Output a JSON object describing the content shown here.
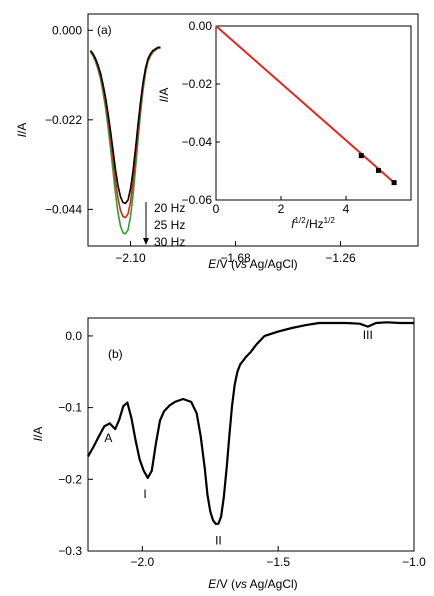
{
  "chart_data": [
    {
      "panel": "a",
      "type": "line",
      "panel_label": "(a)",
      "x_title": {
        "italic": "E",
        "rest": "/V (",
        "italic2": "vs",
        "rest2": " Ag/AgCl)"
      },
      "y_title": {
        "italic": "I",
        "rest": "/A"
      },
      "xlim": [
        -2.27,
        -0.95
      ],
      "ylim": [
        -0.053,
        0.004
      ],
      "xticks": [
        -2.1,
        -1.68,
        -1.26
      ],
      "xtick_labels": [
        "−2.10",
        "−1.68",
        "−1.26"
      ],
      "yticks": [
        0.0,
        -0.022,
        -0.044
      ],
      "ytick_labels": [
        "0.000",
        "−0.022",
        "−0.044"
      ],
      "series": [
        {
          "name": "20 Hz",
          "color": "#000000",
          "peak": -0.0425
        },
        {
          "name": "25 Hz",
          "color": "#d62718",
          "peak": -0.046
        },
        {
          "name": "30 Hz",
          "color": "#2ca02c",
          "peak": -0.05
        }
      ],
      "curve_x": [
        -2.26,
        -2.25,
        -2.24,
        -2.23,
        -2.22,
        -2.21,
        -2.2,
        -2.19,
        -2.18,
        -2.17,
        -2.16,
        -2.15,
        -2.14,
        -2.13,
        -2.12,
        -2.11,
        -2.1,
        -2.09,
        -2.08,
        -2.07,
        -2.06,
        -2.05,
        -2.04,
        -2.03,
        -2.02,
        -2.01,
        -2.0,
        -1.99,
        -1.98
      ],
      "curve_shape": [
        0.05,
        0.07,
        0.1,
        0.14,
        0.19,
        0.26,
        0.34,
        0.44,
        0.55,
        0.67,
        0.79,
        0.89,
        0.96,
        0.995,
        1.0,
        0.98,
        0.91,
        0.8,
        0.66,
        0.51,
        0.37,
        0.25,
        0.16,
        0.1,
        0.07,
        0.05,
        0.04,
        0.03,
        0.03
      ],
      "legend": [
        "20 Hz",
        "25 Hz",
        "30 Hz"
      ],
      "inset": {
        "type": "line",
        "x_title": {
          "italic": "f",
          "sup1": "1/2",
          "rest": "/Hz",
          "sup2": "1/2"
        },
        "y_title": {
          "italic": "I",
          "rest": "/A"
        },
        "xlim": [
          0,
          6
        ],
        "ylim": [
          -0.06,
          0.0
        ],
        "xticks": [
          0,
          2,
          4
        ],
        "xtick_labels": [
          "0",
          "2",
          "4"
        ],
        "yticks": [
          0.0,
          -0.02,
          -0.04,
          -0.06
        ],
        "ytick_labels": [
          "0.00",
          "−0.02",
          "−0.04",
          "−0.06"
        ],
        "points": [
          [
            4.47,
            -0.0447
          ],
          [
            5.0,
            -0.0498
          ],
          [
            5.48,
            -0.054
          ]
        ],
        "fit_line": [
          [
            0,
            0.0
          ],
          [
            5.48,
            -0.054
          ]
        ],
        "line_color": "#e8241a",
        "marker_color": "#000000"
      }
    },
    {
      "panel": "b",
      "type": "line",
      "panel_label": "(b)",
      "x_title": {
        "italic": "E",
        "rest": "/V (",
        "italic2": "vs",
        "rest2": " Ag/AgCl)"
      },
      "y_title": {
        "italic": "I",
        "rest": "/A"
      },
      "xlim": [
        -2.2,
        -1.0
      ],
      "ylim": [
        -0.3,
        0.025
      ],
      "xticks": [
        -2.0,
        -1.5,
        -1.0
      ],
      "xtick_labels": [
        "−2.0",
        "−1.5",
        "−1.0"
      ],
      "yticks": [
        0.0,
        -0.1,
        -0.2,
        -0.3
      ],
      "ytick_labels": [
        "0.0",
        "−0.1",
        "−0.2",
        "−0.3"
      ],
      "series": [
        {
          "name": "",
          "color": "#000000",
          "x": [
            -2.2,
            -2.18,
            -2.16,
            -2.14,
            -2.12,
            -2.1,
            -2.085,
            -2.07,
            -2.055,
            -2.04,
            -2.025,
            -2.01,
            -1.995,
            -1.98,
            -1.965,
            -1.95,
            -1.935,
            -1.92,
            -1.9,
            -1.88,
            -1.85,
            -1.82,
            -1.8,
            -1.785,
            -1.77,
            -1.76,
            -1.75,
            -1.74,
            -1.73,
            -1.72,
            -1.71,
            -1.7,
            -1.69,
            -1.68,
            -1.67,
            -1.66,
            -1.65,
            -1.64,
            -1.63,
            -1.62,
            -1.6,
            -1.58,
            -1.55,
            -1.5,
            -1.45,
            -1.4,
            -1.35,
            -1.3,
            -1.25,
            -1.2,
            -1.17,
            -1.14,
            -1.1,
            -1.05,
            -1.0
          ],
          "y": [
            -0.168,
            -0.155,
            -0.14,
            -0.126,
            -0.122,
            -0.13,
            -0.117,
            -0.098,
            -0.093,
            -0.115,
            -0.145,
            -0.172,
            -0.188,
            -0.198,
            -0.188,
            -0.15,
            -0.118,
            -0.105,
            -0.097,
            -0.092,
            -0.088,
            -0.092,
            -0.108,
            -0.14,
            -0.185,
            -0.222,
            -0.245,
            -0.257,
            -0.262,
            -0.262,
            -0.252,
            -0.225,
            -0.185,
            -0.14,
            -0.098,
            -0.068,
            -0.05,
            -0.04,
            -0.035,
            -0.03,
            -0.022,
            -0.012,
            0.0,
            0.006,
            0.011,
            0.015,
            0.018,
            0.018,
            0.018,
            0.017,
            0.013,
            0.018,
            0.019,
            0.018,
            0.018
          ]
        }
      ],
      "annotations": [
        {
          "text": "A",
          "x": -2.125,
          "y": -0.148
        },
        {
          "text": "I",
          "x": -1.99,
          "y": -0.226
        },
        {
          "text": "II",
          "x": -1.72,
          "y": -0.291
        },
        {
          "text": "III",
          "x": -1.17,
          "y": -0.004
        }
      ]
    }
  ]
}
